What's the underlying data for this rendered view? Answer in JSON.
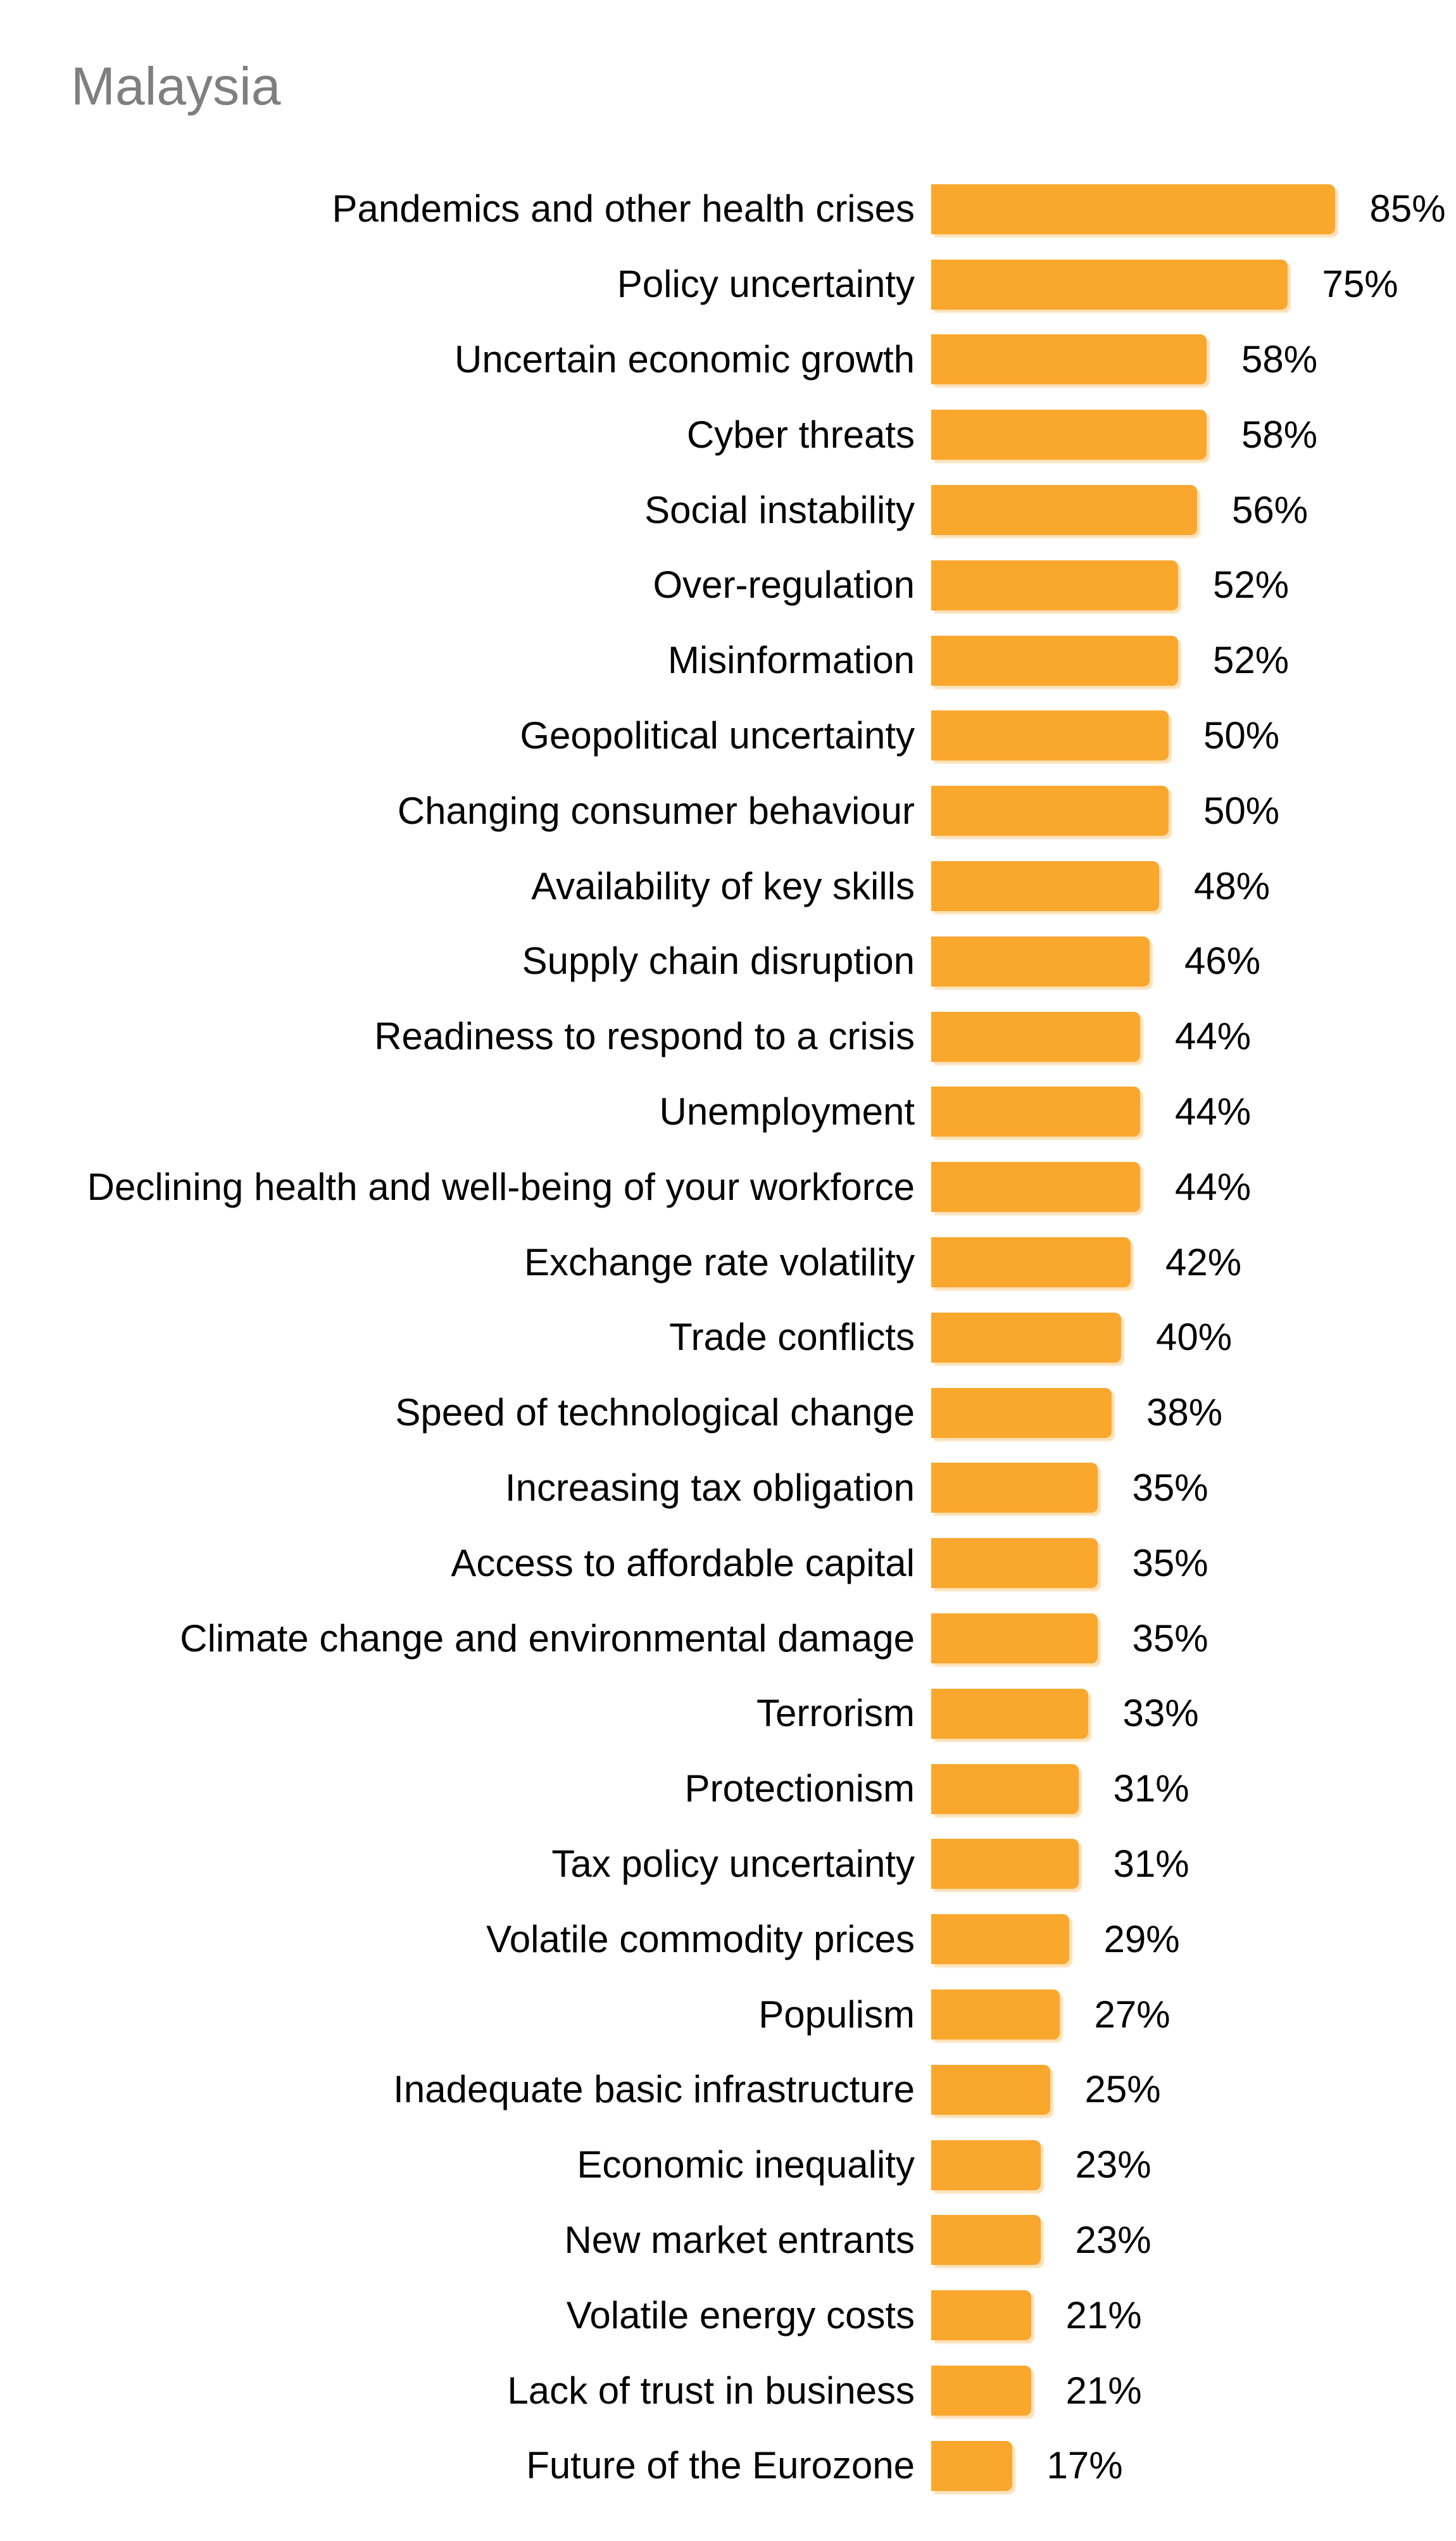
{
  "title": "Malaysia",
  "colors": {
    "bar": "#faa72e",
    "title_text": "#7f7f7f",
    "label_text": "#000000",
    "background": "#ffffff"
  },
  "chart_data": {
    "type": "bar",
    "orientation": "horizontal",
    "title": "Malaysia",
    "xlabel": "",
    "ylabel": "",
    "unit": "%",
    "xlim": [
      0,
      100
    ],
    "grid": false,
    "legend": false,
    "value_labels_shown": true,
    "categories": [
      "Pandemics and other health crises",
      "Policy uncertainty",
      "Uncertain economic growth",
      "Cyber threats",
      "Social instability",
      "Over-regulation",
      "Misinformation",
      "Geopolitical uncertainty",
      "Changing consumer behaviour",
      "Availability of key skills",
      "Supply chain disruption",
      "Readiness to respond to a crisis",
      "Unemployment",
      "Declining health and well-being of your workforce",
      "Exchange rate volatility",
      "Trade conflicts",
      "Speed of technological change",
      "Increasing tax obligation",
      "Access to affordable capital",
      "Climate change and environmental damage",
      "Terrorism",
      "Protectionism",
      "Tax policy uncertainty",
      "Volatile commodity prices",
      "Populism",
      "Inadequate basic infrastructure",
      "Economic inequality",
      "New market entrants",
      "Volatile energy costs",
      "Lack of trust in business",
      "Future of the Eurozone"
    ],
    "values": [
      85,
      75,
      58,
      58,
      56,
      52,
      52,
      50,
      50,
      48,
      46,
      44,
      44,
      44,
      42,
      40,
      38,
      35,
      35,
      35,
      33,
      31,
      31,
      29,
      27,
      25,
      23,
      23,
      21,
      21,
      17
    ]
  }
}
